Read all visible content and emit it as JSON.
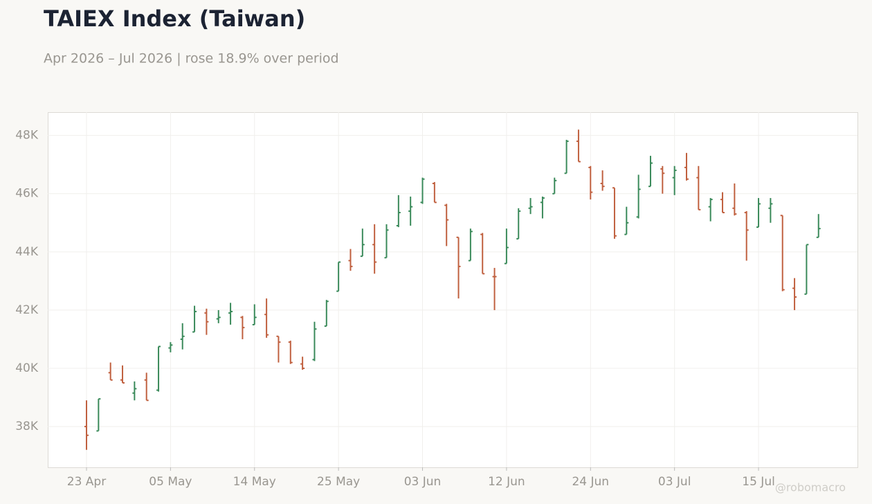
{
  "chart_data": {
    "type": "ohlc",
    "title": "TAIEX Index (Taiwan)",
    "subtitle": "Apr 2026 – Jul 2026 | rose 18.9% over period",
    "watermark": "@robomacro",
    "up_color": "#3a8a5a",
    "down_color": "#c0603f",
    "grid": true,
    "categories": [
      "23 Apr",
      null,
      null,
      null,
      null,
      null,
      null,
      "05 May",
      null,
      null,
      null,
      null,
      null,
      null,
      "14 May",
      null,
      null,
      null,
      null,
      null,
      null,
      "25 May",
      null,
      null,
      null,
      null,
      null,
      null,
      "03 Jun",
      null,
      null,
      null,
      null,
      null,
      null,
      "12 Jun",
      null,
      null,
      null,
      null,
      null,
      null,
      "24 Jun",
      null,
      null,
      null,
      null,
      null,
      null,
      "03 Jul",
      null,
      null,
      null,
      null,
      null,
      null,
      "15 Jul",
      null,
      null,
      null,
      null,
      null
    ],
    "ylim": [
      36600,
      48800
    ],
    "yticks": [
      {
        "value": 38000,
        "label": "38K"
      },
      {
        "value": 40000,
        "label": "40K"
      },
      {
        "value": 42000,
        "label": "42K"
      },
      {
        "value": 44000,
        "label": "44K"
      },
      {
        "value": 46000,
        "label": "46K"
      },
      {
        "value": 48000,
        "label": "48K"
      }
    ],
    "open": [
      38000,
      37850,
      39850,
      39600,
      39150,
      39600,
      39250,
      40700,
      41000,
      41250,
      41900,
      41700,
      41900,
      41750,
      41500,
      41850,
      41100,
      40900,
      40150,
      40300,
      41450,
      42650,
      43700,
      43850,
      44250,
      43800,
      44900,
      45400,
      45700,
      46350,
      45600,
      44500,
      43700,
      44600,
      43150,
      43600,
      44450,
      45500,
      45700,
      46000,
      46700,
      47800,
      46900,
      46350,
      46200,
      44600,
      45200,
      46250,
      46850,
      46550,
      46900,
      46550,
      45550,
      45800,
      45500,
      45350,
      44850,
      45500,
      45250,
      42750,
      42550,
      44500
    ],
    "high": [
      38900,
      38950,
      40200,
      40100,
      39550,
      39850,
      40750,
      40900,
      41550,
      42150,
      42050,
      42000,
      42250,
      41800,
      42200,
      42400,
      41100,
      40950,
      40400,
      41600,
      42350,
      43650,
      44100,
      44800,
      44950,
      44950,
      45950,
      45900,
      46550,
      46400,
      45650,
      44500,
      44800,
      44650,
      43450,
      44800,
      45500,
      45850,
      45900,
      46550,
      47850,
      48200,
      46950,
      46800,
      46200,
      45550,
      46650,
      47300,
      46950,
      46950,
      47400,
      46950,
      45850,
      46050,
      46350,
      45400,
      45850,
      45850,
      45250,
      43100,
      44250,
      45300
    ],
    "low": [
      37200,
      37850,
      39600,
      39500,
      38900,
      38900,
      39200,
      40550,
      40650,
      41250,
      41150,
      41550,
      41500,
      41000,
      41500,
      41050,
      40200,
      40150,
      39950,
      40250,
      41450,
      42650,
      43350,
      43850,
      43250,
      43800,
      44850,
      44900,
      45650,
      45700,
      44200,
      42400,
      43700,
      43250,
      42000,
      43600,
      44450,
      45300,
      45150,
      46000,
      46700,
      47100,
      45800,
      46100,
      44450,
      44600,
      45150,
      46250,
      46000,
      45950,
      46450,
      45450,
      45050,
      45350,
      45250,
      43700,
      44850,
      45000,
      42650,
      42000,
      42550,
      44500
    ],
    "close": [
      37700,
      38950,
      39600,
      39500,
      39300,
      38900,
      40750,
      40800,
      41100,
      41950,
      41600,
      41750,
      41950,
      41400,
      41750,
      41150,
      40900,
      40200,
      40000,
      41350,
      42300,
      43650,
      43500,
      44250,
      43650,
      44750,
      45350,
      45550,
      46500,
      45700,
      45100,
      43500,
      44700,
      43250,
      43150,
      44150,
      45400,
      45550,
      45850,
      46450,
      47800,
      47100,
      46050,
      46250,
      44550,
      45000,
      46150,
      47050,
      46700,
      46800,
      46500,
      45450,
      45800,
      45350,
      45300,
      44750,
      45650,
      45650,
      42700,
      42450,
      44250,
      44800
    ]
  }
}
